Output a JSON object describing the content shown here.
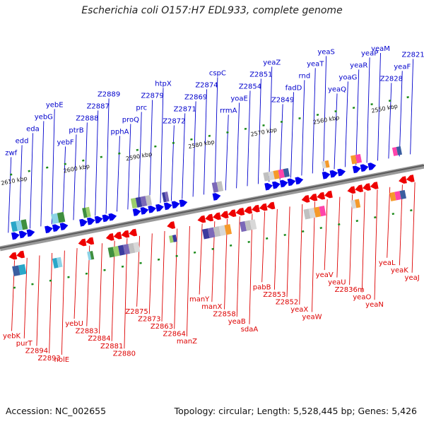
{
  "title": "Escherichia coli O157:H7 EDL933, complete genome",
  "footer": {
    "accession": "Accession: NC_002655",
    "info": "Topology: circular; Length: 5,528,445 bp; Genes: 5,426"
  },
  "colors": {
    "forward_label": "#0000cc",
    "reverse_label": "#dd0000",
    "forward_gene": "#0000ee",
    "reverse_gene": "#ee0000",
    "backbone": "#808080",
    "tick": "#1a8a1a"
  },
  "axis": {
    "tick_labels": [
      "2610 kbp",
      "2600 kbp",
      "2590 kbp",
      "2580 kbp",
      "2570 kbp",
      "2560 kbp",
      "2550 kbp"
    ]
  },
  "forward_genes": [
    "zwf",
    "edd",
    "eda",
    "yebG",
    "yebE",
    "yebF",
    "ptrB",
    "Z2888",
    "Z2887",
    "Z2889",
    "pphA",
    "proQ",
    "prc",
    "Z2879",
    "htpX",
    "Z2872",
    "Z2871",
    "Z2869",
    "Z2874",
    "cspC",
    "rrmA",
    "yoaE",
    "Z2854",
    "Z2851",
    "yeaZ",
    "Z2849",
    "fadD",
    "rnd",
    "yeaT",
    "yeaS",
    "yeaQ",
    "yoaG",
    "yeaR",
    "yeaP",
    "yeaM",
    "Z2828",
    "yeaF",
    "Z2821"
  ],
  "reverse_genes": [
    "yebK",
    "purT",
    "Z2894",
    "Z2893",
    "holE",
    "yebU",
    "Z2883",
    "Z2884",
    "Z2881",
    "Z2880",
    "Z2875",
    "Z2873",
    "Z2863",
    "Z2864",
    "manZ",
    "manY",
    "manX",
    "Z2858",
    "yeaB",
    "sdaA",
    "pabB",
    "Z2853",
    "Z2852",
    "yeaX",
    "yeaW",
    "yeaV",
    "yeaU",
    "Z2836m",
    "yeaO",
    "yeaN",
    "yeaL",
    "yeaK",
    "yeaJ"
  ]
}
